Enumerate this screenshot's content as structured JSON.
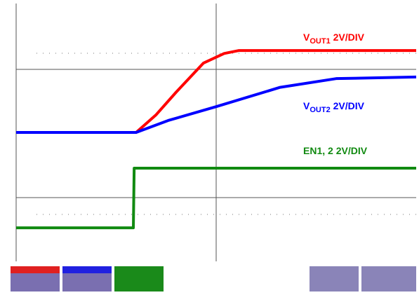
{
  "chart_data": {
    "type": "line",
    "xlim": [
      0,
      10
    ],
    "ylim": [
      0,
      8
    ],
    "series": [
      {
        "label": {
          "main": "V",
          "sub": "OUT1",
          "rest": " 2V/DIV"
        },
        "color": "#ff0000",
        "x": [
          0,
          3.0,
          3.5,
          4.0,
          4.68,
          5.2,
          5.56,
          10
        ],
        "values": [
          4.0,
          4.0,
          4.55,
          5.25,
          6.15,
          6.45,
          6.54,
          6.54
        ]
      },
      {
        "label": {
          "main": "V",
          "sub": "OUT2",
          "rest": " 2V/DIV"
        },
        "color": "#0000ff",
        "x": [
          0,
          3.0,
          3.8,
          5.0,
          6.6,
          8.0,
          10
        ],
        "values": [
          4.0,
          4.0,
          4.37,
          4.8,
          5.4,
          5.67,
          5.72
        ]
      },
      {
        "label": {
          "main": "EN1, 2 2V/DIV"
        },
        "color": "#118a11",
        "x": [
          0,
          2.93,
          2.95,
          10
        ],
        "values": [
          1.04,
          1.04,
          2.89,
          2.89
        ]
      }
    ]
  }
}
